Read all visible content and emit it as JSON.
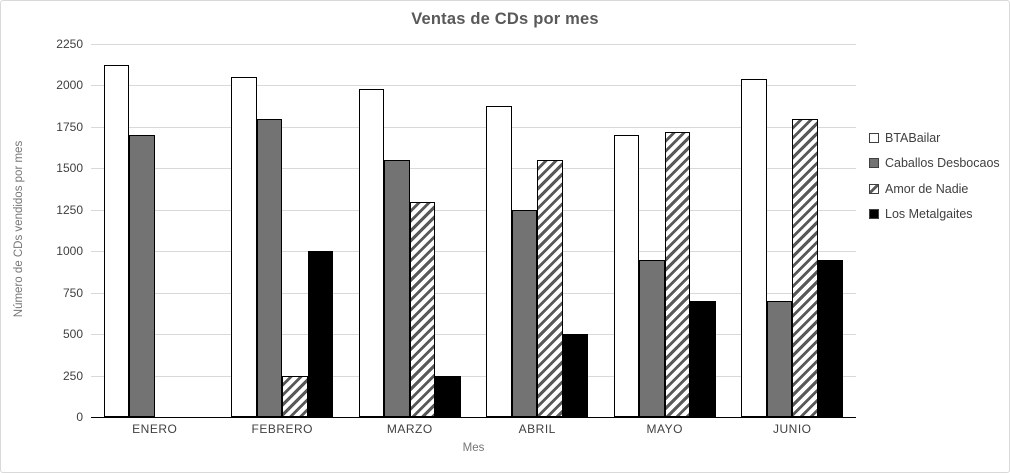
{
  "chart_data": {
    "type": "bar",
    "title": "Ventas de CDs por mes",
    "xlabel": "Mes",
    "ylabel": "Número de CDs vendidos por mes",
    "categories": [
      "ENERO",
      "FEBRERO",
      "MARZO",
      "ABRIL",
      "MAYO",
      "JUNIO"
    ],
    "series": [
      {
        "name": "BTABailar",
        "style": "white",
        "values": [
          2125,
          2050,
          1980,
          1875,
          1700,
          2040
        ]
      },
      {
        "name": "Caballos Desbocaos",
        "style": "gray",
        "values": [
          1700,
          1800,
          1550,
          1250,
          950,
          700
        ]
      },
      {
        "name": "Amor de Nadie",
        "style": "hatch",
        "values": [
          0,
          250,
          1300,
          1550,
          1720,
          1800
        ]
      },
      {
        "name": "Los Metalgaites",
        "style": "black",
        "values": [
          0,
          1000,
          250,
          500,
          700,
          950
        ]
      }
    ],
    "ylim": [
      0,
      2250
    ],
    "yticks": [
      0,
      250,
      500,
      750,
      1000,
      1250,
      1500,
      1750,
      2000,
      2250
    ],
    "grid": true,
    "legend_position": "right"
  },
  "colors": {
    "bar_white_fill": "#ffffff",
    "bar_gray_fill": "#737373",
    "bar_black_fill": "#000000",
    "bar_outline": "#000000",
    "hatch_stripe": "#595959",
    "gridline": "#d9d9d9",
    "axis_line": "#000000",
    "tick_label": "#404040",
    "axis_title": "#757575",
    "chart_title": "#595959",
    "chart_border": "#d9d9d9"
  }
}
